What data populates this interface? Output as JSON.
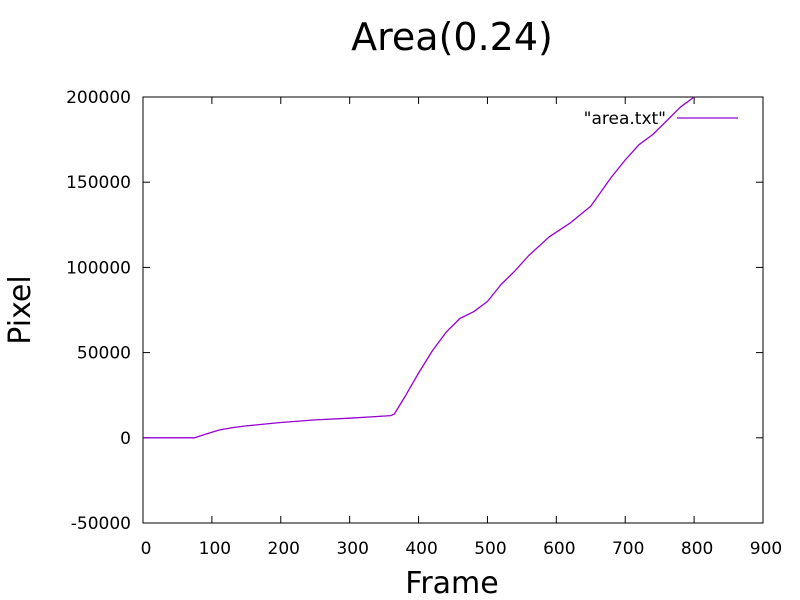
{
  "chart_data": {
    "type": "line",
    "title": "Area(0.24)",
    "xlabel": "Frame",
    "ylabel": "Pixel",
    "xlim": [
      0,
      900
    ],
    "ylim": [
      -50000,
      200000
    ],
    "xticks": [
      0,
      100,
      200,
      300,
      400,
      500,
      600,
      700,
      800,
      900
    ],
    "yticks": [
      -50000,
      0,
      50000,
      100000,
      150000,
      200000
    ],
    "grid": false,
    "legend_position": "top-right",
    "series": [
      {
        "name": "\"area.txt\"",
        "color": "#9400d3",
        "x": [
          0,
          75,
          90,
          110,
          130,
          150,
          200,
          250,
          300,
          340,
          360,
          365,
          380,
          400,
          420,
          440,
          460,
          480,
          500,
          520,
          540,
          560,
          590,
          620,
          650,
          680,
          700,
          720,
          740,
          760,
          780,
          800
        ],
        "y": [
          0,
          0,
          2000,
          4500,
          6000,
          7000,
          9000,
          10500,
          11500,
          12500,
          13000,
          14000,
          24000,
          38000,
          51000,
          62000,
          70000,
          74000,
          80000,
          90000,
          98000,
          107000,
          118000,
          126000,
          136000,
          153000,
          163000,
          172000,
          178000,
          186000,
          194000,
          200000
        ]
      }
    ]
  }
}
